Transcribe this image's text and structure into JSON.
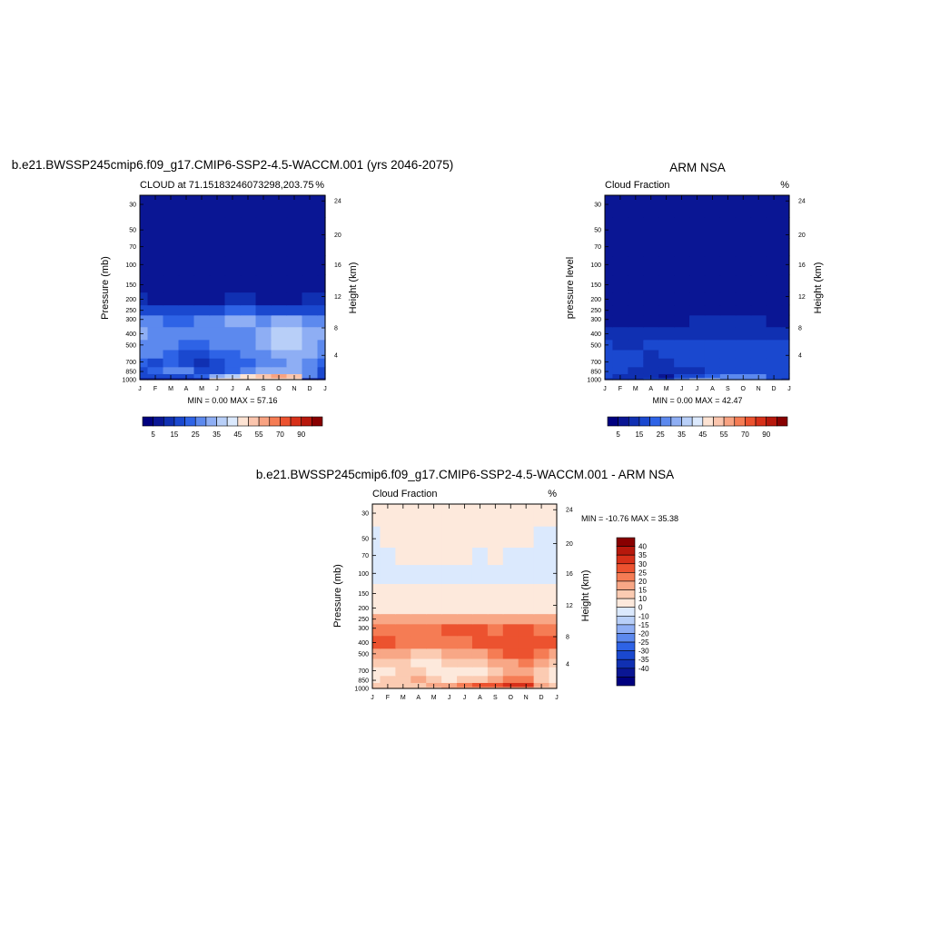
{
  "colors": {
    "cloud_scale": [
      "#00007f",
      "#0a1694",
      "#1030b2",
      "#1a48cf",
      "#2e63e6",
      "#5c89ee",
      "#8eaef4",
      "#b8cff8",
      "#dbe9fd",
      "#fde3d3",
      "#fbc5ad",
      "#f8a281",
      "#f57c54",
      "#ec522f",
      "#d73019",
      "#b7180c",
      "#880000"
    ],
    "diff_scale": [
      "#00007f",
      "#0a1694",
      "#1030b2",
      "#1a48cf",
      "#2e63e6",
      "#5c89ee",
      "#8eaef4",
      "#b8cff8",
      "#dbe9fd",
      "#fde9dc",
      "#fbcbb2",
      "#f8a786",
      "#f57c54",
      "#ec522f",
      "#d73019",
      "#b7180c",
      "#880000"
    ]
  },
  "months": [
    "J",
    "F",
    "M",
    "A",
    "M",
    "J",
    "J",
    "A",
    "S",
    "O",
    "N",
    "D",
    "J"
  ],
  "pressure_ticks": [
    "30",
    "50",
    "70",
    "100",
    "150",
    "200",
    "250",
    "300",
    "400",
    "500",
    "700",
    "850",
    "1000"
  ],
  "height_ticks": [
    "24",
    "20",
    "16",
    "12",
    "8",
    "4"
  ],
  "panel1": {
    "title": "b.e21.BWSSP245cmip6.f09_g17.CMIP6-SSP2-4.5-WACCM.001 (yrs 2046-2075)",
    "left_label": "CLOUD at 71.15183246073298,203.75",
    "right_label": "%",
    "ylabel": "Pressure (mb)",
    "ylabel_right": "Height (km)",
    "minmax": "MIN =   0.00 MAX =  57.16"
  },
  "panel2": {
    "title": "ARM NSA",
    "left_label": "Cloud Fraction",
    "right_label": "%",
    "ylabel": "pressure level",
    "ylabel_right": "Height (km)",
    "minmax": "MIN =   0.00 MAX =  42.47"
  },
  "panel3": {
    "title": "b.e21.BWSSP245cmip6.f09_g17.CMIP6-SSP2-4.5-WACCM.001 - ARM NSA",
    "left_label": "Cloud Fraction",
    "right_label": "%",
    "ylabel": "Pressure (mb)",
    "ylabel_right": "Height (km)",
    "minmax": "MIN = -10.76 MAX =  35.38"
  },
  "colorbar_h_labels": [
    "5",
    "15",
    "25",
    "35",
    "45",
    "55",
    "70",
    "90"
  ],
  "colorbar_v_labels": [
    "40",
    "35",
    "30",
    "25",
    "20",
    "15",
    "10",
    "0",
    "-10",
    "-15",
    "-20",
    "-25",
    "-30",
    "-35",
    "-40"
  ],
  "chart_data": [
    {
      "type": "heatmap",
      "title": "b.e21.BWSSP245cmip6.f09_g17.CMIP6-SSP2-4.5-WACCM.001 (yrs 2046-2075)",
      "ylabel": "Pressure (mb)",
      "x": [
        "J",
        "F",
        "M",
        "A",
        "M",
        "J",
        "J",
        "A",
        "S",
        "O",
        "N",
        "D",
        "J"
      ],
      "y": [
        1000,
        925,
        850,
        700,
        600,
        500,
        400,
        300,
        250,
        200,
        150,
        100,
        70,
        50,
        30
      ],
      "units": "%",
      "min": 0.0,
      "max": 57.16,
      "values": [
        [
          2,
          2,
          2,
          2,
          2,
          40,
          40,
          40,
          40,
          40,
          40,
          2,
          2
        ],
        [
          10,
          10,
          12,
          12,
          15,
          25,
          30,
          40,
          45,
          50,
          45,
          20,
          10
        ],
        [
          14,
          18,
          20,
          20,
          10,
          12,
          18,
          22,
          25,
          25,
          25,
          22,
          14
        ],
        [
          16,
          14,
          18,
          10,
          8,
          12,
          16,
          18,
          20,
          22,
          25,
          24,
          16
        ],
        [
          24,
          22,
          18,
          12,
          12,
          16,
          18,
          20,
          22,
          26,
          28,
          26,
          24
        ],
        [
          24,
          22,
          20,
          18,
          18,
          20,
          22,
          22,
          28,
          30,
          30,
          28,
          24
        ],
        [
          26,
          24,
          22,
          20,
          20,
          22,
          24,
          24,
          26,
          30,
          30,
          28,
          26
        ],
        [
          22,
          20,
          18,
          18,
          20,
          22,
          26,
          26,
          24,
          26,
          26,
          24,
          22
        ],
        [
          12,
          12,
          12,
          12,
          14,
          14,
          16,
          16,
          14,
          12,
          12,
          12,
          12
        ],
        [
          5,
          4,
          4,
          4,
          4,
          4,
          5,
          5,
          4,
          4,
          4,
          5,
          5
        ],
        [
          1,
          1,
          1,
          1,
          1,
          1,
          1,
          1,
          1,
          1,
          1,
          1,
          1
        ],
        [
          0,
          0,
          0,
          0,
          0,
          0,
          0,
          0,
          0,
          0,
          0,
          0,
          0
        ],
        [
          0,
          0,
          0,
          0,
          0,
          0,
          0,
          0,
          0,
          0,
          0,
          0,
          0
        ],
        [
          0,
          0,
          0,
          0,
          0,
          0,
          0,
          0,
          0,
          0,
          0,
          0,
          0
        ],
        [
          0,
          0,
          0,
          0,
          0,
          0,
          0,
          0,
          0,
          0,
          0,
          0,
          0
        ]
      ]
    },
    {
      "type": "heatmap",
      "title": "ARM NSA",
      "ylabel": "pressure level",
      "x": [
        "J",
        "F",
        "M",
        "A",
        "M",
        "J",
        "J",
        "A",
        "S",
        "O",
        "N",
        "D",
        "J"
      ],
      "y": [
        1000,
        925,
        850,
        700,
        600,
        500,
        400,
        300,
        250,
        200,
        150,
        100,
        70,
        50,
        30
      ],
      "units": "%",
      "min": 0.0,
      "max": 42.47,
      "values": [
        [
          8,
          8,
          8,
          10,
          12,
          20,
          30,
          30,
          22,
          22,
          22,
          10,
          8
        ],
        [
          10,
          8,
          8,
          6,
          4,
          10,
          12,
          16,
          20,
          20,
          20,
          12,
          10
        ],
        [
          12,
          10,
          8,
          8,
          6,
          6,
          8,
          10,
          12,
          12,
          14,
          14,
          12
        ],
        [
          14,
          10,
          10,
          8,
          8,
          10,
          12,
          12,
          10,
          10,
          12,
          14,
          14
        ],
        [
          12,
          10,
          10,
          8,
          10,
          10,
          12,
          12,
          10,
          10,
          12,
          14,
          12
        ],
        [
          10,
          8,
          8,
          10,
          10,
          10,
          10,
          10,
          10,
          10,
          12,
          12,
          10
        ],
        [
          6,
          6,
          6,
          6,
          6,
          6,
          8,
          8,
          8,
          8,
          8,
          8,
          6
        ],
        [
          4,
          4,
          4,
          4,
          4,
          4,
          5,
          6,
          6,
          6,
          5,
          4,
          4
        ],
        [
          2,
          2,
          2,
          2,
          2,
          2,
          3,
          3,
          3,
          3,
          2,
          2,
          2
        ],
        [
          1,
          1,
          1,
          1,
          1,
          1,
          1,
          1,
          1,
          1,
          1,
          1,
          1
        ],
        [
          0,
          0,
          0,
          0,
          0,
          0,
          0,
          0,
          0,
          0,
          0,
          0,
          0
        ],
        [
          0,
          0,
          0,
          0,
          0,
          0,
          0,
          0,
          0,
          0,
          0,
          0,
          0
        ],
        [
          0,
          0,
          0,
          0,
          0,
          0,
          0,
          0,
          0,
          0,
          0,
          0,
          0
        ],
        [
          0,
          0,
          0,
          0,
          0,
          0,
          0,
          0,
          0,
          0,
          0,
          0,
          0
        ],
        [
          0,
          0,
          0,
          0,
          0,
          0,
          0,
          0,
          0,
          0,
          0,
          0,
          0
        ]
      ]
    },
    {
      "type": "heatmap",
      "title": "b.e21.BWSSP245cmip6.f09_g17.CMIP6-SSP2-4.5-WACCM.001 - ARM NSA",
      "ylabel": "Pressure (mb)",
      "x": [
        "J",
        "F",
        "M",
        "A",
        "M",
        "J",
        "J",
        "A",
        "S",
        "O",
        "N",
        "D",
        "J"
      ],
      "y": [
        1000,
        925,
        850,
        700,
        600,
        500,
        400,
        300,
        250,
        200,
        150,
        100,
        70,
        50,
        30
      ],
      "units": "%",
      "min": -10.76,
      "max": 35.38,
      "values": [
        [
          12,
          12,
          12,
          12,
          12,
          15,
          15,
          15,
          15,
          15,
          15,
          12,
          12
        ],
        [
          10,
          10,
          12,
          12,
          15,
          15,
          22,
          25,
          25,
          30,
          30,
          15,
          10
        ],
        [
          8,
          10,
          12,
          15,
          10,
          8,
          10,
          12,
          15,
          20,
          20,
          12,
          8
        ],
        [
          8,
          8,
          12,
          10,
          5,
          5,
          8,
          8,
          10,
          15,
          15,
          12,
          8
        ],
        [
          12,
          12,
          10,
          8,
          8,
          10,
          12,
          12,
          15,
          18,
          20,
          15,
          12
        ],
        [
          18,
          18,
          15,
          12,
          12,
          15,
          18,
          18,
          22,
          25,
          25,
          20,
          18
        ],
        [
          25,
          25,
          22,
          20,
          20,
          22,
          22,
          25,
          25,
          25,
          28,
          25,
          25
        ],
        [
          22,
          22,
          20,
          20,
          22,
          25,
          25,
          25,
          22,
          25,
          25,
          22,
          22
        ],
        [
          15,
          15,
          15,
          15,
          15,
          18,
          18,
          18,
          18,
          15,
          15,
          15,
          15
        ],
        [
          8,
          8,
          8,
          8,
          8,
          8,
          8,
          8,
          8,
          8,
          8,
          8,
          8
        ],
        [
          5,
          5,
          5,
          5,
          5,
          5,
          5,
          5,
          5,
          5,
          5,
          5,
          5
        ],
        [
          -5,
          -5,
          -5,
          -5,
          -5,
          -5,
          -5,
          -5,
          -5,
          -5,
          -5,
          -5,
          -5
        ],
        [
          -5,
          -5,
          5,
          5,
          5,
          5,
          5,
          -5,
          5,
          -5,
          -5,
          -5,
          -5
        ],
        [
          -5,
          5,
          5,
          5,
          5,
          5,
          5,
          5,
          5,
          5,
          5,
          -5,
          -5
        ],
        [
          5,
          5,
          5,
          5,
          5,
          5,
          5,
          5,
          5,
          5,
          5,
          5,
          5
        ]
      ]
    }
  ]
}
